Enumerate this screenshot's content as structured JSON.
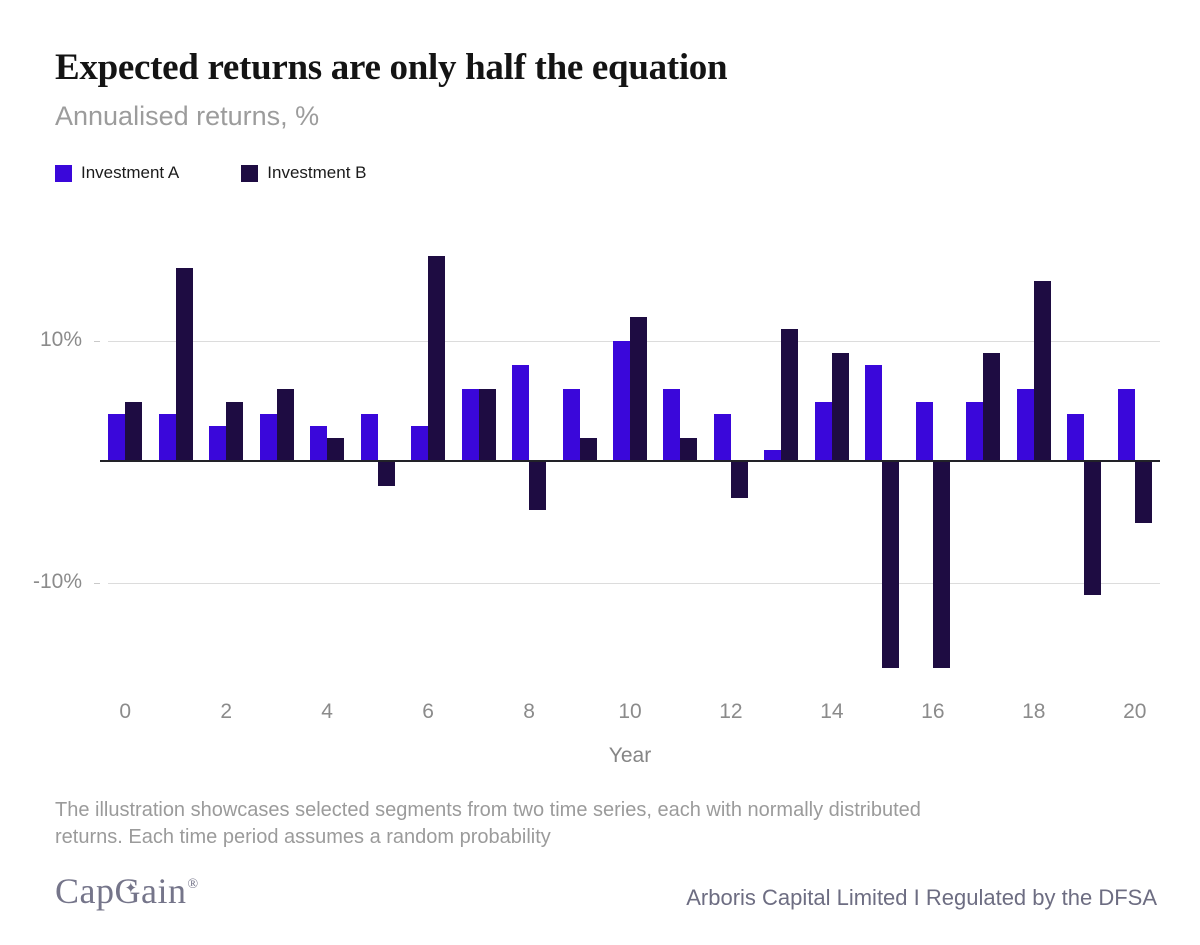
{
  "chart_data": {
    "type": "bar",
    "title": "Expected returns are only half the equation",
    "subtitle": "Annualised returns, %",
    "xlabel": "Year",
    "categories": [
      0,
      1,
      2,
      3,
      4,
      5,
      6,
      7,
      8,
      9,
      10,
      11,
      12,
      13,
      14,
      15,
      16,
      17,
      18,
      19,
      20
    ],
    "x_tick_labels_shown": [
      "0",
      "2",
      "4",
      "6",
      "8",
      "10",
      "12",
      "14",
      "16",
      "18",
      "20"
    ],
    "series": [
      {
        "name": "Investment A",
        "color": "#3a07da",
        "values": [
          4,
          4,
          3,
          4,
          3,
          4,
          3,
          6,
          8,
          6,
          10,
          6,
          4,
          1,
          5,
          8,
          5,
          5,
          6,
          4,
          6
        ]
      },
      {
        "name": "Investment B",
        "color": "#1e0c42",
        "values": [
          5,
          16,
          5,
          6,
          2,
          -2,
          17,
          6,
          -4,
          2,
          12,
          2,
          -3,
          11,
          9,
          -17,
          -17,
          9,
          15,
          -11,
          -5
        ]
      }
    ],
    "yticks": [
      {
        "value": 10,
        "label": "10%"
      },
      {
        "value": -10,
        "label": "-10%"
      }
    ],
    "ylim": [
      -18,
      18.3
    ],
    "grid": "horizontal lines at +10% and -10% only",
    "legend_position": "top-left",
    "zero_baseline": true
  },
  "footnote": {
    "line1": "The illustration showcases selected segments from two time series, each with normally distributed",
    "line2": "returns. Each time period assumes a random probability"
  },
  "footer": {
    "logo_part1": "Cap",
    "logo_part2": "G",
    "logo_part3": "ain",
    "logo_star_glyph": "✦",
    "logo_mark": "®",
    "disclaimer": "Arboris Capital Limited I Regulated by the DFSA"
  }
}
